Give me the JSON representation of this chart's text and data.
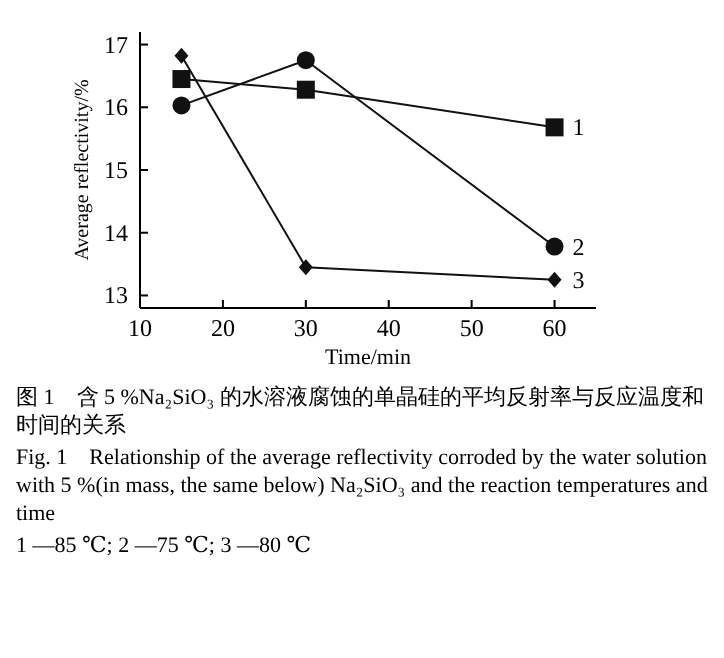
{
  "chart_data": {
    "type": "line",
    "xlabel": "Time/min",
    "ylabel": "Average reflectivity/%",
    "xlim": [
      10,
      65
    ],
    "ylim": [
      12.8,
      17.2
    ],
    "xticks": [
      10,
      20,
      30,
      40,
      50,
      60
    ],
    "yticks": [
      13,
      14,
      15,
      16,
      17
    ],
    "grid": false,
    "x": [
      15,
      30,
      60
    ],
    "series": [
      {
        "name": "1",
        "color": "#111111",
        "marker": "square",
        "values": [
          16.45,
          16.28,
          15.68
        ]
      },
      {
        "name": "2",
        "color": "#111111",
        "marker": "circle",
        "values": [
          16.03,
          16.75,
          13.78
        ]
      },
      {
        "name": "3",
        "color": "#111111",
        "marker": "diamond",
        "values": [
          16.82,
          13.45,
          13.25
        ]
      }
    ],
    "annotations": [
      "图 1　含 5 %Na₂SiO₃ 的水溶液腐蚀的单晶硅的平均反射率与反应温度和时间的关系",
      "Fig. 1　Relationship of the average reflectivity corroded by the water solution with 5 %(in mass, the same below) Na₂SiO₃ and the reaction temperatures and time",
      "1 —85 ℃; 2 —75 ℃; 3 —80 ℃"
    ]
  }
}
